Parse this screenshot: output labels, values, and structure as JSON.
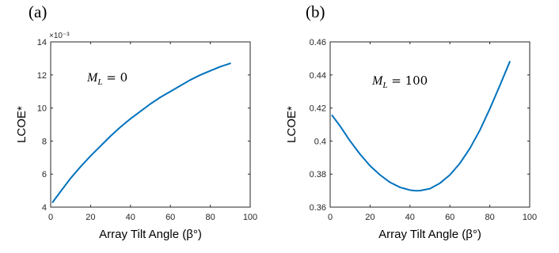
{
  "chart_data": [
    {
      "type": "line",
      "panel_label": "(a)",
      "xlabel": "Array Tilt Angle (β°)",
      "ylabel": "LCOE*",
      "y_exponent_label": "×10⁻³",
      "xlim": [
        0,
        100
      ],
      "ylim": [
        4,
        14
      ],
      "xticks": [
        0,
        20,
        40,
        60,
        80,
        100
      ],
      "xtick_labels": [
        "0",
        "20",
        "40",
        "60",
        "80",
        "100"
      ],
      "yticks": [
        4,
        6,
        8,
        10,
        12,
        14
      ],
      "ytick_labels": [
        "4",
        "6",
        "8",
        "10",
        "12",
        "14"
      ],
      "grid": false,
      "annotation": {
        "symbol": "M",
        "subscript": "L",
        "equals": "=",
        "value": "0"
      },
      "series": [
        {
          "color": "#0072BD",
          "x": [
            1,
            5,
            10,
            15,
            20,
            25,
            30,
            35,
            40,
            45,
            50,
            55,
            60,
            65,
            70,
            75,
            80,
            85,
            90
          ],
          "y": [
            4.3,
            4.95,
            5.75,
            6.45,
            7.1,
            7.7,
            8.3,
            8.85,
            9.35,
            9.8,
            10.25,
            10.65,
            11.0,
            11.35,
            11.7,
            12.0,
            12.25,
            12.5,
            12.7
          ]
        }
      ]
    },
    {
      "type": "line",
      "panel_label": "(b)",
      "xlabel": "Array Tilt Angle (β°)",
      "ylabel": "LCOE*",
      "xlim": [
        0,
        100
      ],
      "ylim": [
        0.36,
        0.46
      ],
      "xticks": [
        0,
        20,
        40,
        60,
        80,
        100
      ],
      "xtick_labels": [
        "0",
        "20",
        "40",
        "60",
        "80",
        "100"
      ],
      "yticks": [
        0.36,
        0.38,
        0.4,
        0.42,
        0.44,
        0.46
      ],
      "ytick_labels": [
        "0.36",
        "0.38",
        "0.4",
        "0.42",
        "0.44",
        "0.46"
      ],
      "grid": false,
      "annotation": {
        "symbol": "M",
        "subscript": "L",
        "equals": "=",
        "value": "100"
      },
      "series": [
        {
          "color": "#0072BD",
          "x": [
            1,
            5,
            10,
            15,
            20,
            25,
            30,
            35,
            40,
            43,
            45,
            50,
            55,
            60,
            65,
            70,
            75,
            80,
            85,
            90
          ],
          "y": [
            0.4155,
            0.409,
            0.4,
            0.392,
            0.385,
            0.3795,
            0.375,
            0.372,
            0.3703,
            0.3699,
            0.37,
            0.3712,
            0.3745,
            0.3795,
            0.3865,
            0.3955,
            0.4065,
            0.4195,
            0.4335,
            0.448
          ]
        }
      ]
    }
  ]
}
